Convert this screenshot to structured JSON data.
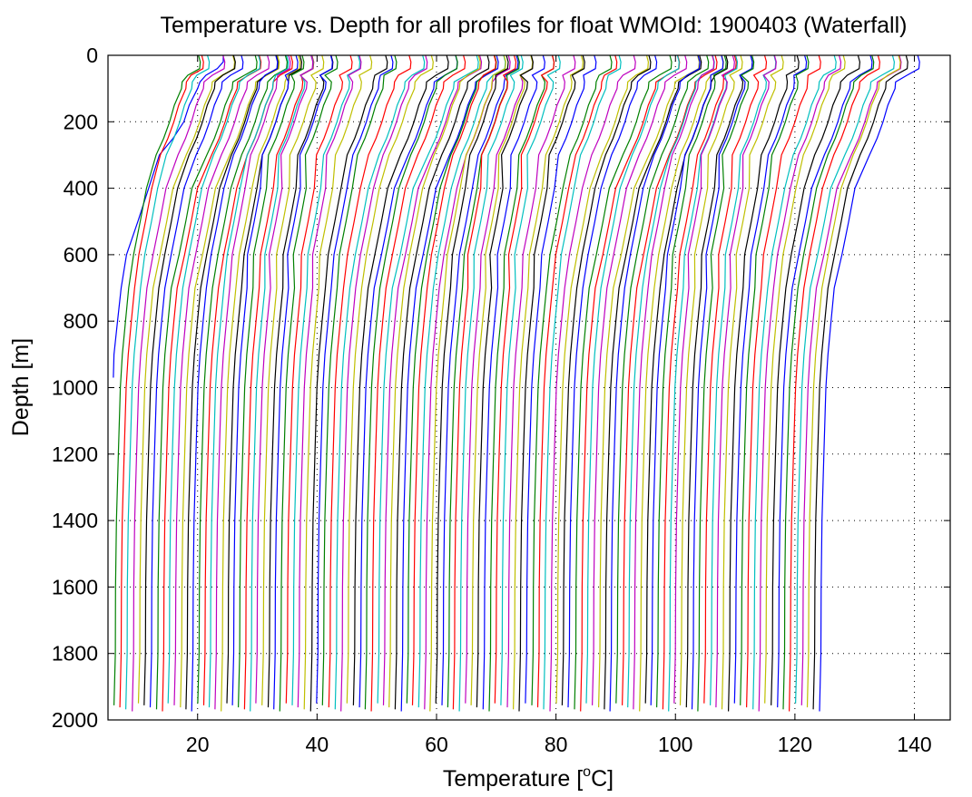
{
  "chart_data": {
    "type": "line",
    "title": "Temperature vs. Depth for all profiles for float WMOId: 1900403 (Waterfall)",
    "xlabel_main": "Temperature [",
    "xlabel_sup": "o",
    "xlabel_end": "C]",
    "ylabel": "Depth [m]",
    "xlim": [
      5,
      146
    ],
    "ylim": [
      2000,
      0
    ],
    "y_reversed": true,
    "xticks": [
      20,
      40,
      60,
      80,
      100,
      120,
      140
    ],
    "xtick_labels": [
      "20",
      "40",
      "60",
      "80",
      "100",
      "120",
      "140"
    ],
    "yticks": [
      0,
      200,
      400,
      600,
      800,
      1000,
      1200,
      1400,
      1600,
      1800,
      2000
    ],
    "ytick_labels": [
      "0",
      "200",
      "400",
      "600",
      "800",
      "1000",
      "1200",
      "1400",
      "1600",
      "1800",
      "2000"
    ],
    "grid": true,
    "series_count": 120,
    "series_colors": [
      "#0000ff",
      "#008000",
      "#ff0000",
      "#00bfbf",
      "#bf00bf",
      "#bfbf00",
      "#000000"
    ],
    "profile_offset_step": 1,
    "profile_template": {
      "depth": [
        0,
        20,
        40,
        60,
        80,
        100,
        150,
        200,
        250,
        300,
        400,
        500,
        600,
        700,
        800,
        900,
        1000,
        1200,
        1400,
        1600,
        1800,
        1960
      ],
      "temperature": [
        15.0,
        15.1,
        14.8,
        13.2,
        12.6,
        12.3,
        11.5,
        10.5,
        9.3,
        8.3,
        7.1,
        6.0,
        5.0,
        4.4,
        3.8,
        3.4,
        3.0,
        2.6,
        2.4,
        2.2,
        2.1,
        2.0
      ]
    },
    "first_profile": {
      "depth": [
        0,
        20,
        40,
        60,
        80,
        100,
        150,
        200,
        250,
        300,
        400,
        500,
        600,
        700,
        800,
        900,
        970
      ],
      "temperature": [
        24.3,
        24.3,
        23.3,
        21.4,
        20.4,
        20.0,
        18.6,
        17.7,
        15.9,
        13.6,
        11.8,
        10.0,
        8.1,
        7.2,
        6.6,
        6.0,
        5.9
      ]
    }
  }
}
